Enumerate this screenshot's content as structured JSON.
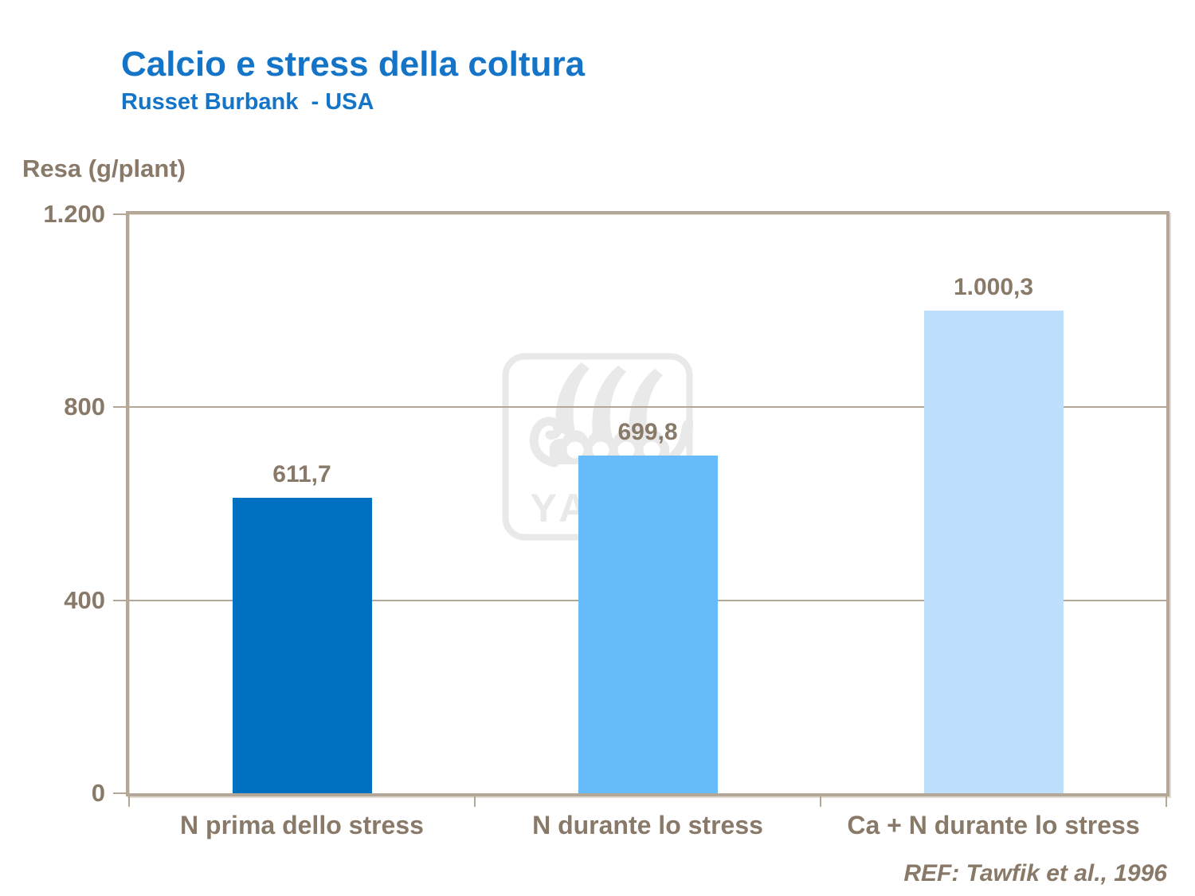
{
  "header": {
    "title": "Calcio e stress della coltura",
    "subtitle": "Russet Burbank  - USA"
  },
  "watermark": {
    "text": "YARA",
    "icon": "yara-viking-ship-logo",
    "color": "#E9E9E9"
  },
  "footer": {
    "reference": "REF: Tawfik et al., 1996"
  },
  "colors": {
    "title_blue": "#1374C8",
    "text_brown": "#897968",
    "axis_tan": "#B5A797",
    "background": "#FFFFFF"
  },
  "chart_data": {
    "type": "bar",
    "title": "Calcio e stress della coltura",
    "subtitle": "Russet Burbank  - USA",
    "xlabel": "",
    "ylabel": "Resa (g/plant)",
    "categories": [
      "N prima dello stress",
      "N durante lo stress",
      "Ca + N durante lo stress"
    ],
    "values": [
      611.7,
      699.8,
      1000.3
    ],
    "value_labels": [
      "611,7",
      "699,8",
      "1.000,3"
    ],
    "bar_colors": [
      "#0070C0",
      "#66BBFA",
      "#BDDFFB"
    ],
    "ylim": [
      0,
      1200
    ],
    "yticks": [
      {
        "value": 1200,
        "label": "1.200"
      },
      {
        "value": 800,
        "label": "800"
      },
      {
        "value": 400,
        "label": "400"
      },
      {
        "value": 0,
        "label": "0"
      }
    ],
    "grid": "horizontal gridlines at 400 and 800",
    "legend": "none",
    "source": "REF: Tawfik et al., 1996"
  }
}
